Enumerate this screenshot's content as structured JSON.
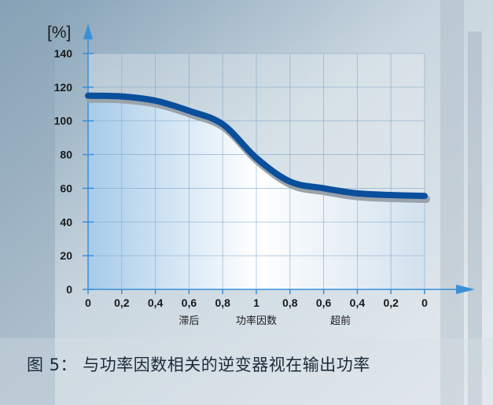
{
  "chart_data": {
    "type": "line",
    "ylabel": "[%]",
    "ylim": [
      0,
      140
    ],
    "yticks": [
      0,
      20,
      40,
      60,
      80,
      100,
      120,
      140
    ],
    "xtick_labels": [
      "0",
      "0,2",
      "0,4",
      "0,6",
      "0,8",
      "1",
      "0,8",
      "0,6",
      "0,4",
      "0,2",
      "0"
    ],
    "x_region_labels": [
      "滞后",
      "功率因数",
      "超前"
    ],
    "grid": true,
    "series": [
      {
        "x": [
          0,
          1,
          2,
          3,
          4,
          5,
          6,
          7,
          8,
          9,
          10
        ],
        "values": [
          115,
          114.5,
          112,
          106,
          98,
          78,
          64,
          60,
          57,
          56,
          55.5
        ]
      }
    ],
    "colors": {
      "line": "#0a4f9c",
      "line_shadow": "#9aa3ab",
      "area_top": "#a6cbe9",
      "area_mid": "#ffffff",
      "grid": "#7fa6c8",
      "axis": "#3a8fd8"
    }
  },
  "caption": "图 5： 与功率因数相关的逆变器视在输出功率"
}
